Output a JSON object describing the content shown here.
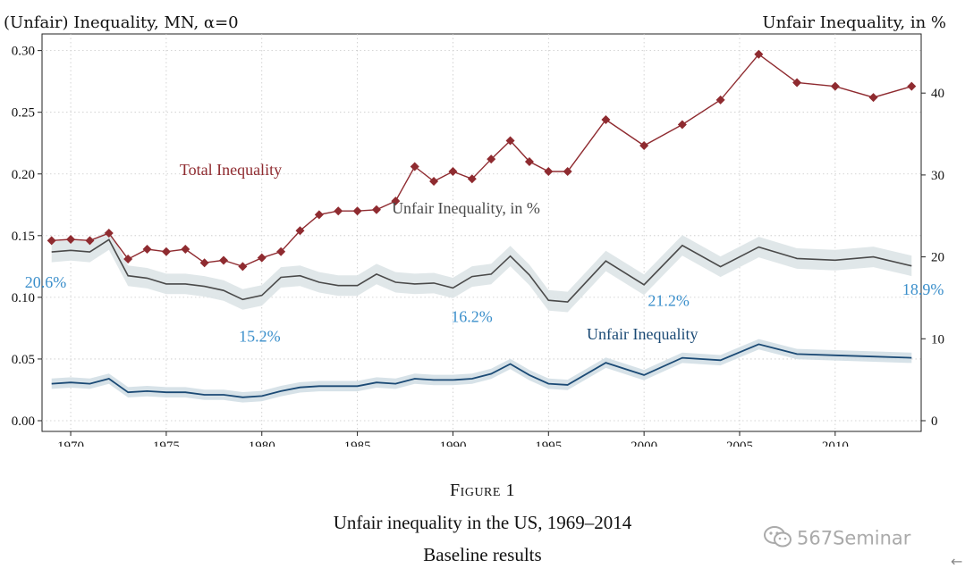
{
  "figure": {
    "number": "Figure 1",
    "title": "Unfair inequality in the US, 1969–2014",
    "subtitle": "Baseline results"
  },
  "watermark": {
    "text": "567Seminar",
    "icon": "wechat-icon"
  },
  "nav": {
    "back_icon": "back-arrow-icon",
    "back_glyph": "←"
  },
  "chart_data": {
    "type": "line",
    "left_axis_title": "(Unfair) Inequality, MN, α=0",
    "right_axis_title": "Unfair Inequality, in %",
    "xlim": [
      1968.5,
      2014.5
    ],
    "ylim_left": [
      0,
      0.32
    ],
    "ylim_right": [
      0,
      48.2
    ],
    "x_ticks": [
      1970,
      1975,
      1980,
      1985,
      1990,
      1995,
      2000,
      2005,
      2010
    ],
    "y_left_ticks": [
      "0.00",
      "0.05",
      "0.10",
      "0.15",
      "0.20",
      "0.25",
      "0.30"
    ],
    "y_right_ticks": [
      "0",
      "10",
      "20",
      "30",
      "40"
    ],
    "grid": true,
    "colors": {
      "total": "#8f2b30",
      "unfair": "#1b4a75",
      "percent": "#4a4a4a",
      "band": "#d3dfe6",
      "annotation": "#3b8fcb"
    },
    "series": [
      {
        "name": "Total Inequality",
        "axis": "left",
        "marker": "diamond",
        "x": [
          1969,
          1970,
          1971,
          1972,
          1973,
          1974,
          1975,
          1976,
          1977,
          1978,
          1979,
          1980,
          1981,
          1982,
          1983,
          1984,
          1985,
          1986,
          1987,
          1988,
          1989,
          1990,
          1991,
          1992,
          1993,
          1994,
          1995,
          1996,
          1998,
          2000,
          2002,
          2004,
          2006,
          2008,
          2010,
          2012,
          2014
        ],
        "values": [
          0.146,
          0.147,
          0.146,
          0.152,
          0.131,
          0.139,
          0.137,
          0.139,
          0.128,
          0.13,
          0.125,
          0.132,
          0.137,
          0.154,
          0.167,
          0.17,
          0.17,
          0.171,
          0.178,
          0.206,
          0.194,
          0.202,
          0.196,
          0.212,
          0.227,
          0.21,
          0.202,
          0.202,
          0.244,
          0.223,
          0.24,
          0.26,
          0.297,
          0.274,
          0.271,
          0.262,
          0.271
        ]
      },
      {
        "name": "Unfair Inequality, in %",
        "axis": "right",
        "x": [
          1969,
          1970,
          1971,
          1972,
          1973,
          1974,
          1975,
          1976,
          1977,
          1978,
          1979,
          1980,
          1981,
          1982,
          1983,
          1984,
          1985,
          1986,
          1987,
          1988,
          1989,
          1990,
          1991,
          1992,
          1993,
          1994,
          1995,
          1996,
          1998,
          2000,
          2002,
          2004,
          2006,
          2008,
          2010,
          2012,
          2014
        ],
        "values": [
          20.6,
          20.8,
          20.6,
          22.1,
          17.7,
          17.4,
          16.7,
          16.7,
          16.4,
          15.9,
          14.8,
          15.3,
          17.5,
          17.7,
          16.9,
          16.5,
          16.5,
          17.9,
          16.9,
          16.7,
          16.8,
          16.2,
          17.6,
          17.9,
          20.1,
          17.8,
          14.7,
          14.5,
          19.5,
          16.6,
          21.4,
          18.8,
          21.2,
          19.8,
          19.6,
          20.0,
          18.9
        ],
        "band_halfwidth": 1.25
      },
      {
        "name": "Unfair Inequality",
        "axis": "left",
        "x": [
          1969,
          1970,
          1971,
          1972,
          1973,
          1974,
          1975,
          1976,
          1977,
          1978,
          1979,
          1980,
          1981,
          1982,
          1983,
          1984,
          1985,
          1986,
          1987,
          1988,
          1989,
          1990,
          1991,
          1992,
          1993,
          1994,
          1995,
          1996,
          1998,
          2000,
          2002,
          2004,
          2006,
          2008,
          2010,
          2012,
          2014
        ],
        "values": [
          0.03,
          0.031,
          0.03,
          0.034,
          0.023,
          0.024,
          0.023,
          0.023,
          0.021,
          0.021,
          0.019,
          0.02,
          0.024,
          0.027,
          0.028,
          0.028,
          0.028,
          0.031,
          0.03,
          0.034,
          0.033,
          0.033,
          0.034,
          0.038,
          0.046,
          0.037,
          0.03,
          0.029,
          0.047,
          0.037,
          0.051,
          0.049,
          0.062,
          0.054,
          0.053,
          0.052,
          0.051
        ],
        "band_halfwidth": 0.0042
      }
    ],
    "series_labels": [
      {
        "text": "Total Inequality",
        "series": "Total Inequality",
        "x": 1975.7,
        "y_left": 0.199,
        "anchor": "start"
      },
      {
        "text": "Unfair Inequality, in %",
        "series": "Unfair Inequality, in %",
        "x": 1986.8,
        "y_left": 0.168,
        "anchor": "start"
      },
      {
        "text": "Unfair Inequality",
        "series": "Unfair Inequality",
        "x": 1997.0,
        "y_left": 0.066,
        "anchor": "start"
      }
    ],
    "annotations": [
      {
        "text": "20.6%",
        "x": 1967.6,
        "y_left": 0.108,
        "anchor": "start"
      },
      {
        "text": "15.2%",
        "x": 1978.8,
        "y_left": 0.064,
        "anchor": "start"
      },
      {
        "text": "16.2%",
        "x": 1989.9,
        "y_left": 0.08,
        "anchor": "start"
      },
      {
        "text": "21.2%",
        "x": 2000.2,
        "y_left": 0.093,
        "anchor": "start"
      },
      {
        "text": "18.9%",
        "x": 2014.6,
        "y_left": 0.102,
        "anchor": "middle"
      }
    ]
  }
}
